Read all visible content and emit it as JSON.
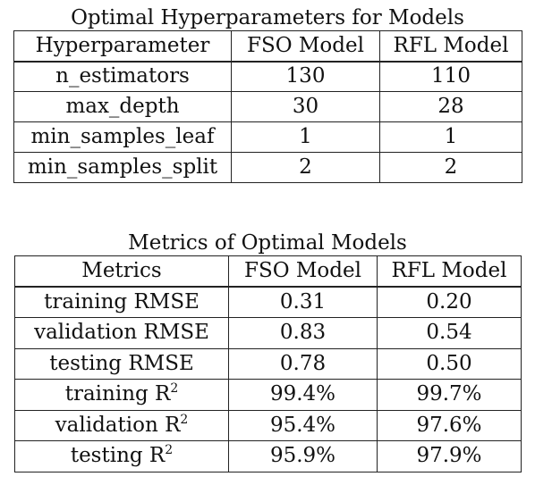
{
  "hyperparameters": {
    "title": "Optimal Hyperparameters for Models",
    "headers": [
      "Hyperparameter",
      "FSO Model",
      "RFL Model"
    ],
    "rows": [
      [
        "n_estimators",
        "130",
        "110"
      ],
      [
        "max_depth",
        "30",
        "28"
      ],
      [
        "min_samples_leaf",
        "1",
        "1"
      ],
      [
        "min_samples_split",
        "2",
        "2"
      ]
    ]
  },
  "metrics": {
    "title": "Metrics of Optimal Models",
    "headers": [
      "Metrics",
      "FSO Model",
      "RFL Model"
    ],
    "rows": [
      [
        "training RMSE",
        "0.31",
        "0.20"
      ],
      [
        "validation RMSE",
        "0.83",
        "0.54"
      ],
      [
        "testing RMSE",
        "0.78",
        "0.50"
      ]
    ],
    "r2_rows": [
      {
        "label": "training R",
        "sup": "2",
        "fso": "99.4%",
        "rfl": "99.7%"
      },
      {
        "label": "validation R",
        "sup": "2",
        "fso": "95.4%",
        "rfl": "97.6%"
      },
      {
        "label": "testing R",
        "sup": "2",
        "fso": "95.9%",
        "rfl": "97.9%"
      }
    ]
  }
}
